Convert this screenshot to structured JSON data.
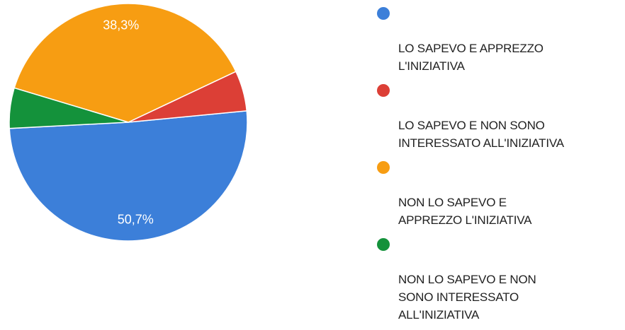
{
  "chart_data": {
    "type": "pie",
    "series": [
      {
        "name": "LO SAPEVO E APPREZZO L'INIZIATIVA",
        "value": 50.7,
        "label": "50,7%",
        "color": "#3c7fd9"
      },
      {
        "name": "LO SAPEVO E NON SONO INTERESSATO ALL'INIZIATIVA",
        "value": 5.5,
        "label": "",
        "color": "#dc3f36"
      },
      {
        "name": "NON LO SAPEVO E APPREZZO L'INIZIATIVA",
        "value": 38.3,
        "label": "38,3%",
        "color": "#f79d12"
      },
      {
        "name": "NON LO SAPEVO E NON SONO INTERESSATO ALL'INIZIATIVA",
        "value": 5.5,
        "label": "",
        "color": "#14923b"
      }
    ],
    "legend": {
      "position": "right",
      "entries": [
        {
          "text": "LO SAPEVO E APPREZZO\nL'INIZIATIVA",
          "color": "#3c7fd9"
        },
        {
          "text": "LO SAPEVO E NON SONO\nINTERESSATO ALL'INIZIATIVA",
          "color": "#dc3f36"
        },
        {
          "text": "NON LO SAPEVO E\nAPPREZZO L'INIZIATIVA",
          "color": "#f79d12"
        },
        {
          "text": "NON LO SAPEVO E NON\nSONO INTERESSATO\nALL'INIZIATIVA",
          "color": "#14923b"
        }
      ]
    }
  }
}
